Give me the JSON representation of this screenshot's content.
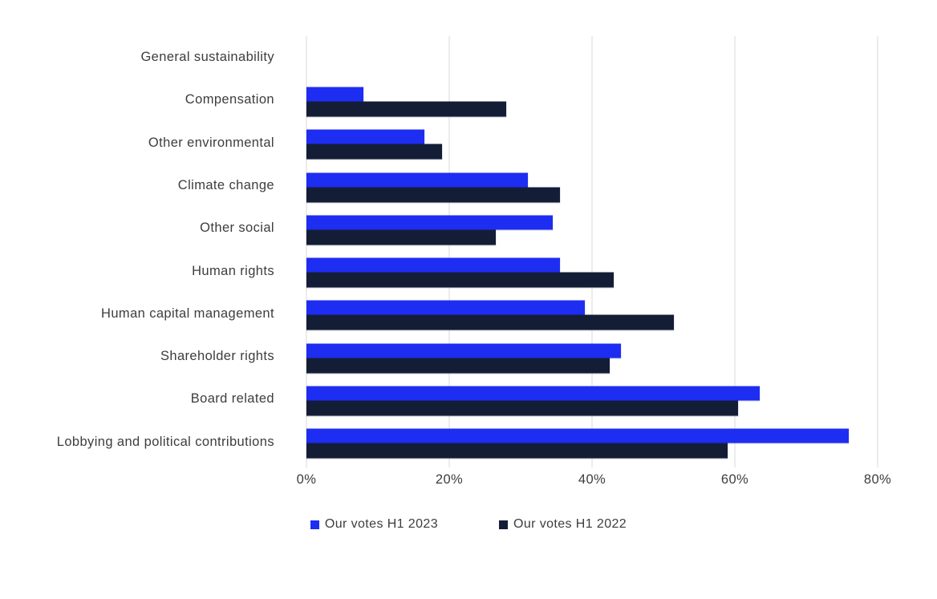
{
  "chart_data": {
    "type": "bar",
    "orientation": "horizontal",
    "title": "",
    "categories": [
      "General sustainability",
      "Compensation",
      "Other environmental",
      "Climate change",
      "Other social",
      "Human rights",
      "Human capital management",
      "Shareholder rights",
      "Board related",
      "Lobbying and political contributions"
    ],
    "series": [
      {
        "name": "Our votes H1 2023",
        "color": "#1e2df2",
        "values": [
          0,
          8,
          16.5,
          31,
          34.5,
          35.5,
          39,
          44,
          63.5,
          76
        ]
      },
      {
        "name": "Our votes H1 2022",
        "color": "#141d36",
        "values": [
          0,
          28,
          19,
          35.5,
          26.5,
          43,
          51.5,
          42.5,
          60.5,
          59
        ]
      }
    ],
    "x_axis": {
      "min": 0,
      "max": 80,
      "step": 20,
      "unit": "%",
      "tick_labels": [
        "0%",
        "20%",
        "40%",
        "60%",
        "80%"
      ]
    },
    "grid": "vertical",
    "gridline_color": "#d9d9d9",
    "text_color": "#3d3d3d",
    "legend_position": "bottom"
  },
  "legend": {
    "items": [
      {
        "label": "Our votes H1 2023",
        "color": "#1e2df2"
      },
      {
        "label": "Our votes H1 2022",
        "color": "#141d36"
      }
    ]
  }
}
